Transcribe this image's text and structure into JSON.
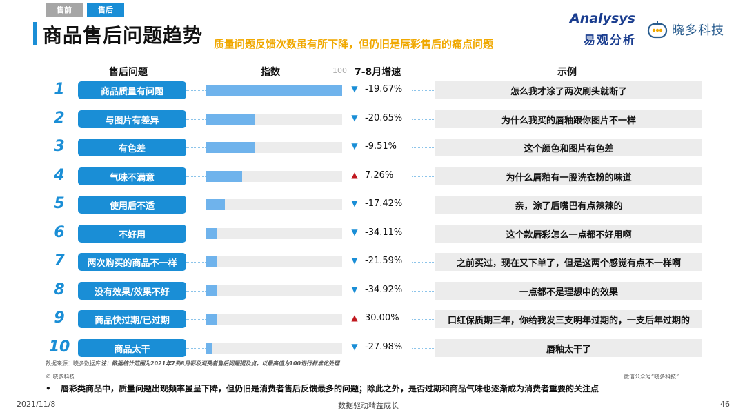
{
  "tabs": {
    "pre": "售前",
    "post": "售后"
  },
  "title": "商品售后问题趋势",
  "headline": "质量问题反馈次数虽有所下降，但仍旧是唇彩售后的痛点问题",
  "brand": {
    "analysys_word": "Analysys",
    "analysys_cn": "易观分析",
    "xiaoduo": "晓多科技"
  },
  "columns": {
    "issue": "售后问题",
    "index": "指数",
    "growth": "7-8月增速",
    "example": "示例",
    "axis_max": "100"
  },
  "chart_data": {
    "type": "bar",
    "orientation": "horizontal",
    "xlim": [
      0,
      100
    ],
    "categories": [
      "商品质量有问题",
      "与图片有差异",
      "有色差",
      "气味不满意",
      "使用后不适",
      "不好用",
      "两次购买的商品不一样",
      "没有效果/效果不好",
      "商品快过期/已过期",
      "商品太干"
    ],
    "values": [
      100,
      36,
      36,
      27,
      14,
      8,
      8,
      8,
      8,
      5
    ],
    "growth": [
      "-19.67%",
      "-20.65%",
      "-9.51%",
      "7.26%",
      "-17.42%",
      "-34.11%",
      "-21.59%",
      "-34.92%",
      "30.00%",
      "-27.98%"
    ],
    "trend": [
      "down",
      "down",
      "down",
      "up",
      "down",
      "down",
      "down",
      "down",
      "up",
      "down"
    ]
  },
  "rows": [
    {
      "rank": "1",
      "issue": "商品质量有问题",
      "growth": "-19.67%",
      "trend_icon": "▼",
      "example": "怎么我才涂了两次刷头就断了"
    },
    {
      "rank": "2",
      "issue": "与图片有差异",
      "growth": "-20.65%",
      "trend_icon": "▼",
      "example": "为什么我买的唇釉跟你图片不一样"
    },
    {
      "rank": "3",
      "issue": "有色差",
      "growth": "-9.51%",
      "trend_icon": "▼",
      "example": "这个颜色和图片有色差"
    },
    {
      "rank": "4",
      "issue": "气味不满意",
      "growth": "7.26%",
      "trend_icon": "▲",
      "example": "为什么唇釉有一股洗衣粉的味道"
    },
    {
      "rank": "5",
      "issue": "使用后不适",
      "growth": "-17.42%",
      "trend_icon": "▼",
      "example": "亲，涂了后嘴巴有点辣辣的"
    },
    {
      "rank": "6",
      "issue": "不好用",
      "growth": "-34.11%",
      "trend_icon": "▼",
      "example": "这个款唇彩怎么一点都不好用啊"
    },
    {
      "rank": "7",
      "issue": "两次购买的商品不一样",
      "growth": "-21.59%",
      "trend_icon": "▼",
      "example": "之前买过，现在又下单了，但是这两个感觉有点不一样啊"
    },
    {
      "rank": "8",
      "issue": "没有效果/效果不好",
      "growth": "-34.92%",
      "trend_icon": "▼",
      "example": "一点都不是理想中的效果"
    },
    {
      "rank": "9",
      "issue": "商品快过期/已过期",
      "growth": "30.00%",
      "trend_icon": "▲",
      "example": "口红保质期三年，你给我发三支明年过期的，一支后年过期的"
    },
    {
      "rank": "10",
      "issue": "商品太干",
      "growth": "-27.98%",
      "trend_icon": "▼",
      "example": "唇釉太干了"
    }
  ],
  "footer": {
    "source_label": "数据来源：晓多数据库",
    "source_note": "注：数据统计范围为2021年7到8月彩妆消费者售后问题提及点，以最高值为100进行标准化处理",
    "copyright": "© 晓多科技",
    "wechat": "微信公众号“晓多科技”",
    "bullet": "唇彩类商品中，质量问题出现频率虽呈下降，但仍旧是消费者售后反馈最多的问题；除此之外，是否过期和商品气味也逐渐成为消费者重要的关注点",
    "bullet_marker": "•",
    "date": "2021/11/8",
    "tagline": "数据驱动精益成长",
    "page": "46"
  },
  "colors": {
    "accent": "#1a8ed6",
    "bar": "#6fb3ec",
    "down": "#1a8ed6",
    "up": "#c0181f",
    "headline": "#f0a800",
    "brand": "#1a3d8f"
  }
}
